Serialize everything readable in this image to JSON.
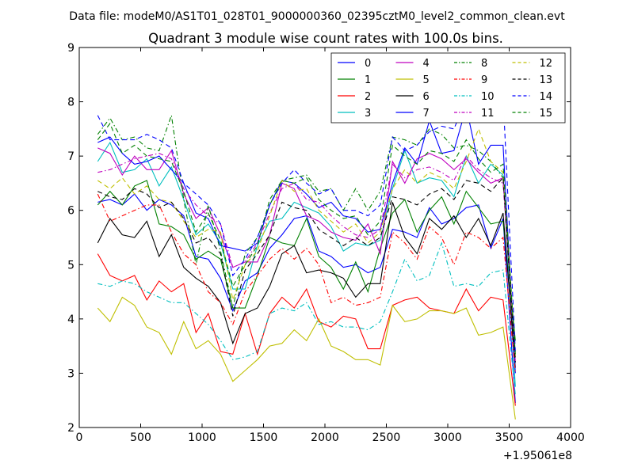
{
  "chart_data": {
    "type": "line",
    "suptitle": "Data file: modeM0/AS1T01_028T01_9000000360_02395cztM0_level2_common_clean.evt",
    "title": "Quadrant 3 module wise count rates with 100.0s bins.",
    "xlabel": "",
    "ylabel": "",
    "x_offset_label": "+1.95061e8",
    "xlim": [
      0,
      4000
    ],
    "ylim": [
      2,
      9
    ],
    "xticks": [
      0,
      500,
      1000,
      1500,
      2000,
      2500,
      3000,
      3500,
      4000
    ],
    "yticks": [
      2,
      3,
      4,
      5,
      6,
      7,
      8,
      9
    ],
    "grid": false,
    "legend": {
      "placement": "top-right",
      "columns": 4
    },
    "x": [
      150,
      250,
      350,
      450,
      550,
      650,
      750,
      850,
      950,
      1050,
      1150,
      1250,
      1350,
      1450,
      1550,
      1650,
      1750,
      1850,
      1950,
      2050,
      2150,
      2250,
      2350,
      2450,
      2550,
      2650,
      2750,
      2850,
      2950,
      3050,
      3150,
      3250,
      3350,
      3450,
      3550
    ],
    "series": [
      {
        "name": "0",
        "color": "#0000ff",
        "dash": "solid",
        "values": [
          6.15,
          6.2,
          6.1,
          6.3,
          6.0,
          6.2,
          6.1,
          5.9,
          5.15,
          5.1,
          4.75,
          4.15,
          4.7,
          4.85,
          5.3,
          5.55,
          5.85,
          5.9,
          5.25,
          5.15,
          4.95,
          5.0,
          4.85,
          4.95,
          5.65,
          5.6,
          5.5,
          6.05,
          5.75,
          5.85,
          6.05,
          6.1,
          5.3,
          5.85,
          2.45
        ]
      },
      {
        "name": "1",
        "color": "#008000",
        "dash": "solid",
        "values": [
          6.1,
          6.35,
          6.1,
          6.45,
          6.55,
          5.75,
          5.7,
          5.55,
          5.1,
          5.25,
          5.1,
          4.2,
          4.2,
          4.8,
          5.5,
          5.4,
          5.35,
          5.85,
          5.15,
          4.95,
          4.55,
          5.05,
          4.5,
          5.3,
          5.95,
          6.2,
          5.6,
          6.0,
          6.25,
          5.75,
          6.35,
          6.05,
          5.75,
          5.8,
          3.6
        ]
      },
      {
        "name": "2",
        "color": "#ff0000",
        "dash": "solid",
        "values": [
          5.2,
          4.8,
          4.7,
          4.8,
          4.35,
          4.7,
          4.5,
          4.65,
          3.75,
          4.1,
          3.4,
          3.35,
          4.1,
          3.35,
          4.1,
          4.4,
          4.2,
          4.55,
          3.95,
          3.85,
          4.05,
          4.0,
          3.45,
          3.45,
          4.25,
          4.35,
          4.4,
          4.2,
          4.15,
          4.1,
          4.55,
          4.15,
          4.4,
          4.35,
          2.4
        ]
      },
      {
        "name": "3",
        "color": "#00bfbf",
        "dash": "solid",
        "values": [
          6.9,
          7.25,
          6.7,
          6.75,
          6.95,
          6.45,
          6.8,
          6.2,
          5.55,
          5.75,
          5.4,
          4.55,
          4.55,
          5.35,
          5.8,
          5.85,
          6.15,
          6.05,
          5.95,
          5.7,
          5.25,
          5.4,
          5.35,
          5.45,
          6.4,
          7.1,
          6.5,
          6.6,
          6.55,
          6.25,
          7.0,
          6.5,
          6.85,
          6.65,
          2.75
        ]
      },
      {
        "name": "4",
        "color": "#bf00bf",
        "dash": "solid",
        "values": [
          7.15,
          7.05,
          6.65,
          7.0,
          6.75,
          6.75,
          7.1,
          6.3,
          5.85,
          6.05,
          5.55,
          4.95,
          5.05,
          5.05,
          5.55,
          6.5,
          6.4,
          5.9,
          5.8,
          5.6,
          5.5,
          5.45,
          5.75,
          5.2,
          6.9,
          6.5,
          6.95,
          7.05,
          6.95,
          6.75,
          6.95,
          6.7,
          6.5,
          6.6,
          3.2
        ]
      },
      {
        "name": "5",
        "color": "#bfbf00",
        "dash": "solid",
        "values": [
          4.2,
          3.95,
          4.4,
          4.25,
          3.85,
          3.75,
          3.35,
          3.95,
          3.45,
          3.6,
          3.35,
          2.85,
          3.05,
          3.25,
          3.5,
          3.55,
          3.8,
          3.6,
          4.0,
          3.5,
          3.4,
          3.25,
          3.25,
          3.15,
          4.25,
          3.95,
          4.0,
          4.15,
          4.15,
          4.1,
          4.2,
          3.7,
          3.75,
          3.85,
          2.15
        ]
      },
      {
        "name": "6",
        "color": "#000000",
        "dash": "solid",
        "values": [
          5.4,
          5.85,
          5.55,
          5.5,
          5.8,
          5.15,
          5.55,
          4.95,
          4.75,
          4.6,
          4.3,
          3.55,
          4.1,
          4.2,
          4.6,
          5.2,
          5.35,
          4.85,
          4.9,
          4.85,
          4.75,
          4.4,
          4.65,
          4.65,
          6.15,
          5.5,
          5.2,
          5.85,
          5.65,
          5.9,
          5.5,
          5.85,
          5.35,
          5.95,
          3.1
        ]
      },
      {
        "name": "7",
        "color": "#0000ff",
        "dash": "solid",
        "values": [
          7.25,
          7.35,
          7.05,
          6.85,
          6.9,
          7.0,
          6.75,
          6.5,
          5.95,
          5.85,
          5.35,
          5.3,
          5.25,
          5.4,
          6.1,
          6.55,
          6.5,
          6.3,
          6.05,
          6.15,
          5.9,
          5.85,
          5.6,
          5.65,
          6.5,
          7.15,
          6.85,
          7.65,
          7.05,
          7.1,
          7.9,
          6.85,
          7.2,
          7.2,
          3.0
        ]
      },
      {
        "name": "8",
        "color": "#008000",
        "dash": "dashdot",
        "values": [
          7.4,
          7.7,
          7.3,
          7.35,
          7.15,
          7.1,
          7.75,
          6.2,
          5.0,
          6.1,
          5.25,
          4.2,
          5.2,
          5.5,
          6.1,
          6.55,
          6.6,
          6.65,
          6.35,
          6.4,
          6.0,
          6.4,
          6.0,
          6.35,
          7.35,
          7.3,
          7.2,
          7.5,
          7.4,
          7.15,
          7.2,
          7.1,
          6.9,
          6.6,
          3.3
        ]
      },
      {
        "name": "9",
        "color": "#ff0000",
        "dash": "dashdot",
        "values": [
          6.3,
          5.8,
          5.9,
          6.0,
          6.1,
          6.1,
          5.6,
          5.2,
          5.0,
          4.5,
          4.3,
          3.9,
          4.5,
          4.8,
          5.1,
          5.3,
          5.1,
          5.3,
          5.0,
          4.3,
          4.4,
          4.25,
          4.3,
          4.4,
          5.6,
          5.4,
          5.1,
          5.7,
          5.5,
          5.0,
          5.6,
          5.5,
          5.3,
          5.5,
          3.0
        ]
      },
      {
        "name": "10",
        "color": "#00bfbf",
        "dash": "dashdot",
        "values": [
          4.65,
          4.6,
          4.7,
          4.65,
          4.5,
          4.4,
          4.3,
          4.3,
          4.1,
          3.9,
          3.6,
          3.25,
          3.3,
          3.4,
          4.1,
          4.2,
          4.15,
          4.3,
          3.9,
          3.95,
          3.85,
          3.85,
          3.8,
          3.95,
          4.5,
          5.1,
          4.7,
          4.8,
          5.4,
          4.6,
          4.65,
          4.6,
          4.85,
          4.9,
          2.6
        ]
      },
      {
        "name": "11",
        "color": "#bf00bf",
        "dash": "dashdot",
        "values": [
          6.7,
          6.75,
          6.85,
          6.95,
          7.0,
          7.05,
          6.95,
          6.4,
          6.1,
          5.9,
          5.75,
          4.95,
          5.05,
          5.4,
          5.95,
          6.4,
          6.5,
          6.2,
          6.15,
          5.9,
          5.7,
          5.55,
          5.5,
          5.65,
          6.85,
          6.6,
          6.75,
          6.8,
          6.7,
          6.55,
          7.0,
          6.75,
          6.6,
          6.5,
          3.2
        ]
      },
      {
        "name": "12",
        "color": "#bfbf00",
        "dash": "dashed",
        "values": [
          6.55,
          6.4,
          6.6,
          6.3,
          6.45,
          6.2,
          6.15,
          5.8,
          5.5,
          5.65,
          5.6,
          4.35,
          5.0,
          5.25,
          5.9,
          6.55,
          6.35,
          6.4,
          6.0,
          5.8,
          5.6,
          5.75,
          5.4,
          5.6,
          6.4,
          6.75,
          6.5,
          6.7,
          6.6,
          6.4,
          6.9,
          7.5,
          6.9,
          6.7,
          3.3
        ]
      },
      {
        "name": "13",
        "color": "#000000",
        "dash": "dashed",
        "values": [
          6.35,
          6.25,
          6.2,
          6.4,
          6.3,
          6.05,
          6.15,
          5.85,
          5.4,
          5.5,
          5.2,
          4.05,
          4.9,
          5.2,
          5.55,
          6.15,
          6.05,
          6.0,
          5.65,
          5.5,
          5.35,
          5.5,
          5.35,
          5.5,
          6.25,
          6.2,
          6.1,
          6.3,
          6.4,
          6.2,
          6.55,
          6.5,
          6.35,
          6.6,
          3.2
        ]
      },
      {
        "name": "14",
        "color": "#0000ff",
        "dash": "dashed",
        "values": [
          7.75,
          7.3,
          7.3,
          7.3,
          7.4,
          7.3,
          7.15,
          6.5,
          6.3,
          6.1,
          5.75,
          4.8,
          5.1,
          5.5,
          6.1,
          6.5,
          6.75,
          6.5,
          6.3,
          6.4,
          6.0,
          6.0,
          5.9,
          6.1,
          7.35,
          7.1,
          7.2,
          7.45,
          7.55,
          7.5,
          8.05,
          7.65,
          7.85,
          8.1,
          3.4
        ]
      },
      {
        "name": "15",
        "color": "#008000",
        "dash": "dashed",
        "values": [
          7.3,
          7.6,
          7.05,
          7.2,
          7.0,
          6.95,
          6.9,
          6.35,
          5.6,
          5.95,
          5.45,
          4.6,
          5.0,
          5.35,
          6.2,
          6.55,
          6.5,
          6.6,
          6.2,
          6.0,
          5.85,
          5.9,
          5.55,
          5.8,
          7.2,
          7.0,
          6.85,
          7.1,
          7.05,
          6.9,
          7.3,
          6.95,
          6.7,
          6.85,
          3.35
        ]
      }
    ]
  }
}
